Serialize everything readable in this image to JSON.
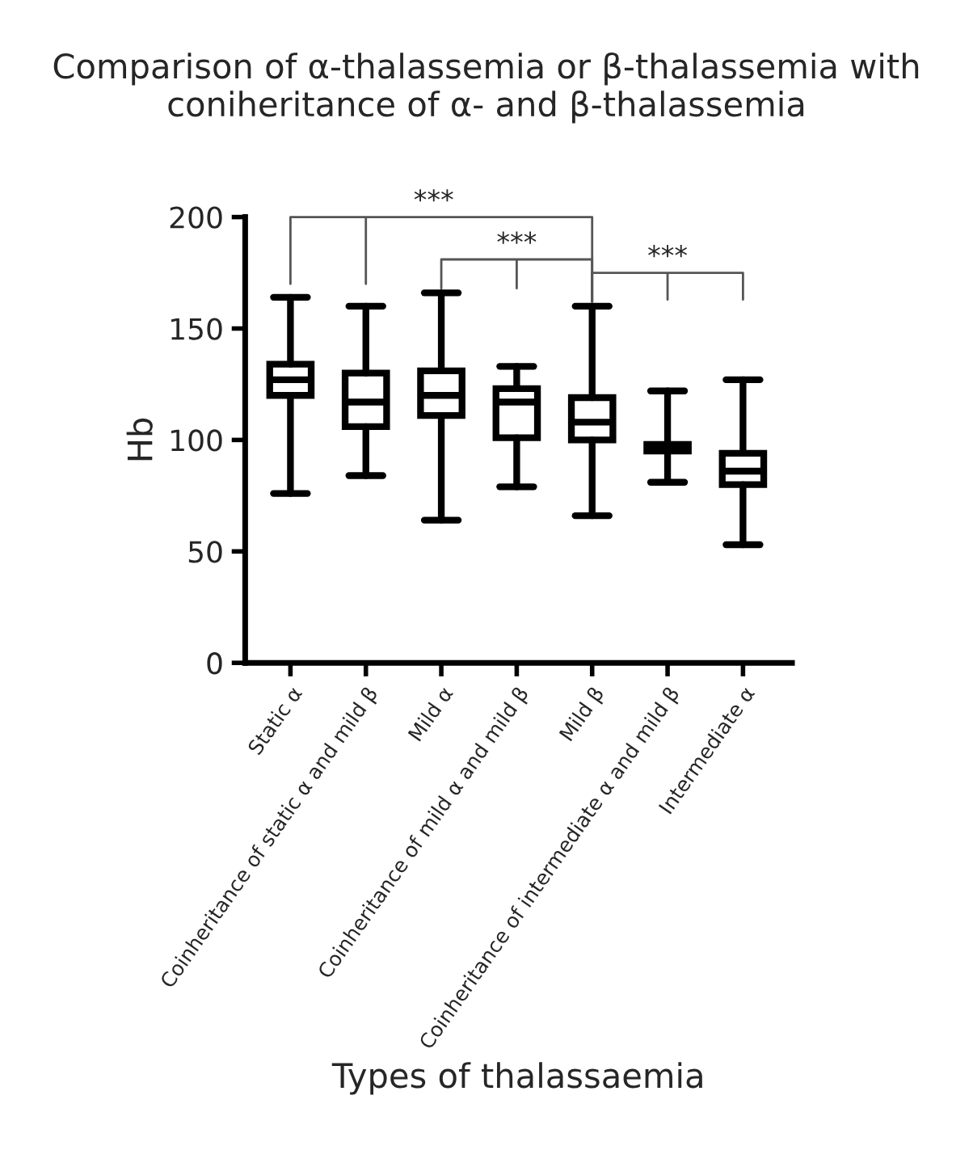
{
  "chart_data": {
    "type": "box",
    "title": "Comparison of α-thalassemia or β-thalassemia with\nconiheritance of α- and β-thalassemia",
    "xlabel": "Types of thalassaemia",
    "ylabel": "Hb",
    "categories": [
      "Static α",
      "Coinheritance of static α and mild β",
      "Mild α",
      "Coinheritance of mild α and mild β",
      "Mild β",
      "Coinheritance of intermediate α and mild β",
      "Intermediate α"
    ],
    "boxes": [
      {
        "low": 76,
        "q1": 120,
        "median": 127,
        "q3": 134,
        "high": 164
      },
      {
        "low": 84,
        "q1": 106,
        "median": 117,
        "q3": 130,
        "high": 160
      },
      {
        "low": 64,
        "q1": 111,
        "median": 120,
        "q3": 131,
        "high": 166
      },
      {
        "low": 79,
        "q1": 101,
        "median": 117,
        "q3": 123,
        "high": 133
      },
      {
        "low": 66,
        "q1": 100,
        "median": 108,
        "q3": 119,
        "high": 160
      },
      {
        "low": 81,
        "q1": 95,
        "median": 97,
        "q3": 98,
        "high": 122
      },
      {
        "low": 53,
        "q1": 80,
        "median": 86,
        "q3": 94,
        "high": 127
      }
    ],
    "color": "#000000",
    "ylim": [
      0,
      200
    ],
    "yticks": [
      0,
      50,
      100,
      150,
      200
    ],
    "annotations": [
      "***",
      "***",
      "***"
    ],
    "grid": false
  }
}
